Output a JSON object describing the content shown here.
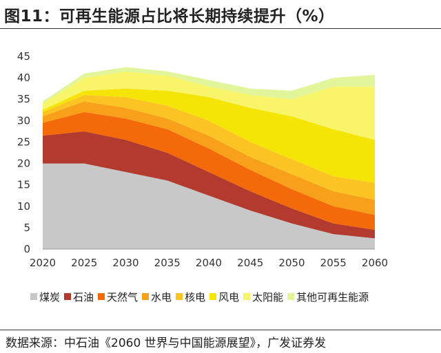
{
  "title": "图11：可再生能源占比将长期持续提升（%）",
  "source": "数据来源：中石油《2060 世界与中国能源展望》，广发证券发",
  "chart_data": {
    "type": "area",
    "stacked": true,
    "x": [
      2020,
      2025,
      2030,
      2035,
      2040,
      2045,
      2050,
      2055,
      2060
    ],
    "ylim": [
      0,
      45
    ],
    "yticks": [
      0,
      5,
      10,
      15,
      20,
      25,
      30,
      35,
      40,
      45
    ],
    "grid": false,
    "legend_position": "bottom",
    "series": [
      {
        "name": "煤炭",
        "color": "#c8c8c8",
        "values": [
          20.0,
          20.0,
          18.0,
          16.0,
          12.5,
          9.0,
          6.0,
          3.5,
          2.5
        ]
      },
      {
        "name": "石油",
        "color": "#b23a2e",
        "values": [
          6.5,
          7.5,
          7.5,
          6.5,
          5.5,
          4.5,
          3.5,
          2.5,
          2.0
        ]
      },
      {
        "name": "天然气",
        "color": "#f46a08",
        "values": [
          3.0,
          4.5,
          5.0,
          5.5,
          5.5,
          5.0,
          4.5,
          4.0,
          3.5
        ]
      },
      {
        "name": "水电",
        "color": "#f9a01b",
        "values": [
          1.5,
          2.5,
          2.5,
          2.5,
          3.0,
          3.0,
          3.5,
          3.5,
          3.5
        ]
      },
      {
        "name": "核电",
        "color": "#fbc423",
        "values": [
          1.0,
          1.5,
          2.5,
          3.0,
          3.5,
          3.5,
          3.5,
          3.5,
          4.0
        ]
      },
      {
        "name": "风电",
        "color": "#f5e507",
        "values": [
          0.5,
          1.0,
          2.0,
          3.5,
          5.5,
          8.0,
          10.0,
          11.0,
          10.0
        ]
      },
      {
        "name": "太阳能",
        "color": "#f8f56a",
        "values": [
          1.5,
          3.0,
          4.0,
          3.5,
          2.5,
          3.0,
          4.0,
          10.0,
          12.5
        ]
      },
      {
        "name": "其他可再生能源",
        "color": "#e2f59a",
        "values": [
          0.5,
          1.0,
          1.0,
          1.0,
          1.5,
          1.5,
          2.0,
          2.0,
          2.7
        ]
      }
    ]
  }
}
